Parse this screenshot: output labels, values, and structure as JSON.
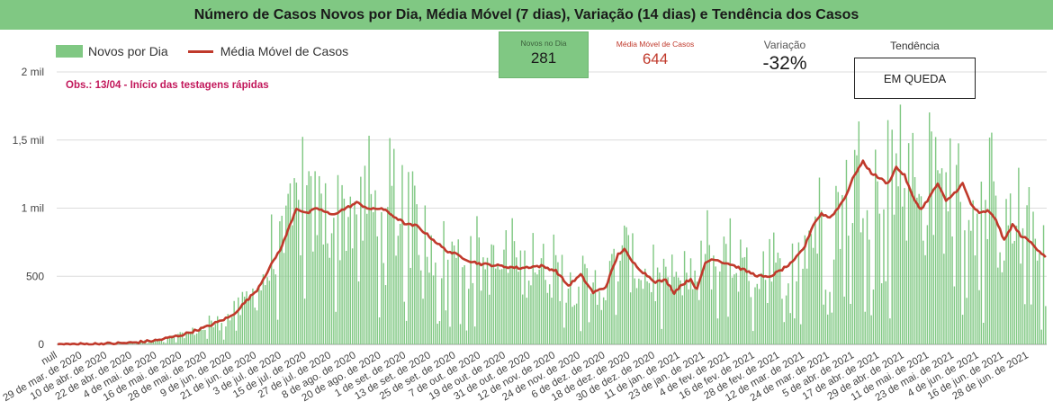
{
  "header": {
    "title": "Número de Casos Novos por Dia, Média Móvel (7 dias), Variação (14 dias) e Tendência dos Casos"
  },
  "legend": {
    "bars_label": "Novos por Dia",
    "line_label": "Média Móvel de Casos"
  },
  "note": "Obs.: 13/04 - Início das testagens rápidas",
  "kpis": {
    "new_label": "Novos no Dia",
    "new_value": "281",
    "avg_label": "Média Móvel de Casos",
    "avg_value": "644",
    "variation_label": "Variação",
    "variation_value": "-32%",
    "trend_label": "Tendência",
    "trend_value": "EM QUEDA"
  },
  "colors": {
    "header_bg": "#80c883",
    "bars": "#80c883",
    "line": "#c0392b",
    "note": "#c2185b"
  },
  "chart_data": {
    "type": "bar",
    "title": "Número de Casos Novos por Dia, Média Móvel (7 dias), Variação (14 dias) e Tendência dos Casos",
    "x_start": "2020-03-17",
    "x_end": "2021-07-06",
    "first_tick_label": "null",
    "x_tick_labels": [
      "29 de mar. de 2020",
      "10 de abr. de 2020",
      "22 de abr. de 2020",
      "4 de mai. de 2020",
      "16 de mai. de 2020",
      "28 de mai. de 2020",
      "9 de jun. de 2020",
      "21 de jun. de 2020",
      "3 de jul. de 2020",
      "15 de jul. de 2020",
      "27 de jul. de 2020",
      "8 de ago. de 2020",
      "20 de ago. de 2020",
      "1 de set. de 2020",
      "13 de set. de 2020",
      "25 de set. de 2020",
      "7 de out. de 2020",
      "19 de out. de 2020",
      "31 de out. de 2020",
      "12 de nov. de 2020",
      "24 de nov. de 2020",
      "6 de dez. de 2020",
      "18 de dez. de 2020",
      "30 de dez. de 2020",
      "11 de jan. de 2021",
      "23 de jan. de 2021",
      "4 de fev. de 2021",
      "16 de fev. de 2021",
      "28 de fev. de 2021",
      "12 de mar. de 2021",
      "24 de mar. de 2021",
      "5 de abr. de 2021",
      "17 de abr. de 2021",
      "29 de abr. de 2021",
      "11 de mai. de 2021",
      "23 de mai. de 2021",
      "4 de jun. de 2021",
      "16 de jun. de 2021",
      "28 de jun. de 2021"
    ],
    "y_ticks": [
      0,
      500,
      1000,
      1500,
      2000
    ],
    "y_tick_labels": [
      "0",
      "500",
      "1 mil",
      "1,5 mil",
      "2 mil"
    ],
    "ylim": [
      0,
      2000
    ],
    "grid": true,
    "legend_position": "top-left",
    "series": [
      {
        "name": "Novos por Dia",
        "type": "bar",
        "note": "daily bars, noisy around the moving average"
      },
      {
        "name": "Média Móvel de Casos",
        "type": "line",
        "points": [
          [
            "2020-03-17",
            0
          ],
          [
            "2020-03-29",
            2
          ],
          [
            "2020-04-10",
            5
          ],
          [
            "2020-04-22",
            12
          ],
          [
            "2020-05-04",
            30
          ],
          [
            "2020-05-16",
            70
          ],
          [
            "2020-05-28",
            130
          ],
          [
            "2020-06-09",
            210
          ],
          [
            "2020-06-21",
            400
          ],
          [
            "2020-07-03",
            720
          ],
          [
            "2020-07-10",
            1000
          ],
          [
            "2020-07-15",
            960
          ],
          [
            "2020-07-20",
            1000
          ],
          [
            "2020-07-27",
            950
          ],
          [
            "2020-08-03",
            1000
          ],
          [
            "2020-08-08",
            1040
          ],
          [
            "2020-08-15",
            990
          ],
          [
            "2020-08-20",
            1000
          ],
          [
            "2020-08-27",
            930
          ],
          [
            "2020-09-01",
            880
          ],
          [
            "2020-09-06",
            870
          ],
          [
            "2020-09-13",
            780
          ],
          [
            "2020-09-20",
            690
          ],
          [
            "2020-09-25",
            660
          ],
          [
            "2020-10-02",
            610
          ],
          [
            "2020-10-07",
            590
          ],
          [
            "2020-10-14",
            580
          ],
          [
            "2020-10-19",
            570
          ],
          [
            "2020-10-26",
            560
          ],
          [
            "2020-10-31",
            570
          ],
          [
            "2020-11-05",
            575
          ],
          [
            "2020-11-12",
            540
          ],
          [
            "2020-11-18",
            430
          ],
          [
            "2020-11-24",
            510
          ],
          [
            "2020-11-30",
            380
          ],
          [
            "2020-12-06",
            420
          ],
          [
            "2020-12-12",
            660
          ],
          [
            "2020-12-15",
            700
          ],
          [
            "2020-12-18",
            620
          ],
          [
            "2020-12-24",
            530
          ],
          [
            "2020-12-30",
            460
          ],
          [
            "2021-01-04",
            470
          ],
          [
            "2021-01-08",
            380
          ],
          [
            "2021-01-11",
            430
          ],
          [
            "2021-01-16",
            480
          ],
          [
            "2021-01-19",
            400
          ],
          [
            "2021-01-23",
            600
          ],
          [
            "2021-01-27",
            630
          ],
          [
            "2021-02-01",
            600
          ],
          [
            "2021-02-04",
            590
          ],
          [
            "2021-02-10",
            550
          ],
          [
            "2021-02-16",
            510
          ],
          [
            "2021-02-22",
            490
          ],
          [
            "2021-02-28",
            540
          ],
          [
            "2021-03-06",
            600
          ],
          [
            "2021-03-12",
            720
          ],
          [
            "2021-03-16",
            880
          ],
          [
            "2021-03-20",
            960
          ],
          [
            "2021-03-24",
            930
          ],
          [
            "2021-03-28",
            1000
          ],
          [
            "2021-04-01",
            1100
          ],
          [
            "2021-04-05",
            1250
          ],
          [
            "2021-04-09",
            1340
          ],
          [
            "2021-04-13",
            1260
          ],
          [
            "2021-04-17",
            1220
          ],
          [
            "2021-04-21",
            1180
          ],
          [
            "2021-04-25",
            1300
          ],
          [
            "2021-04-29",
            1240
          ],
          [
            "2021-05-03",
            1080
          ],
          [
            "2021-05-07",
            990
          ],
          [
            "2021-05-11",
            1080
          ],
          [
            "2021-05-15",
            1180
          ],
          [
            "2021-05-19",
            1050
          ],
          [
            "2021-05-23",
            1110
          ],
          [
            "2021-05-27",
            1180
          ],
          [
            "2021-05-31",
            1030
          ],
          [
            "2021-06-04",
            960
          ],
          [
            "2021-06-08",
            980
          ],
          [
            "2021-06-12",
            920
          ],
          [
            "2021-06-16",
            760
          ],
          [
            "2021-06-20",
            880
          ],
          [
            "2021-06-24",
            800
          ],
          [
            "2021-06-28",
            760
          ],
          [
            "2021-07-02",
            700
          ],
          [
            "2021-07-06",
            644
          ]
        ]
      }
    ]
  }
}
